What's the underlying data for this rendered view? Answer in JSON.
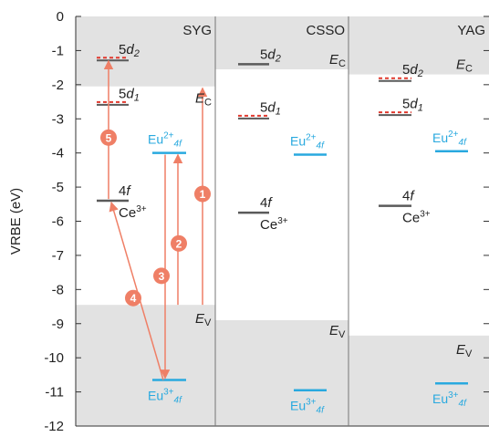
{
  "chart_data": {
    "type": "energy-level-diagram",
    "ylabel": "VRBE (eV)",
    "ylim": [
      -12,
      0
    ],
    "yticks": [
      "0",
      "-1",
      "-2",
      "-3",
      "-4",
      "-5",
      "-6",
      "-7",
      "-8",
      "-9",
      "-10",
      "-11",
      "-12"
    ],
    "grid": false,
    "colors": {
      "ce": "#5a5a5a",
      "eu": "#29a9df",
      "dashed": "#e03a2f",
      "arrow": "#ef7f66",
      "band": "#e2e2e2"
    },
    "panels": [
      {
        "name": "SYG",
        "Ec": -2.05,
        "Ev": -8.45,
        "Ec_label": "E",
        "Ec_sub": "C",
        "Ev_label": "E",
        "Ev_sub": "V",
        "ce_levels": [
          {
            "main": "5d",
            "sub": "2",
            "value": -1.25,
            "dashed": true
          },
          {
            "main": "5d",
            "sub": "1",
            "value": -2.55,
            "dashed": true
          },
          {
            "main": "4f",
            "sub": "",
            "value": -5.4,
            "dashed": false,
            "ion": "Ce",
            "charge": "3+"
          }
        ],
        "eu_levels": [
          {
            "ion": "Eu",
            "charge": "2+",
            "sub": "4f",
            "value": -4.0
          },
          {
            "ion": "Eu",
            "charge": "3+",
            "sub": "4f",
            "value": -10.65
          }
        ],
        "transitions": [
          {
            "label": "1",
            "from": -8.45,
            "to": -2.1
          },
          {
            "label": "2",
            "from": -8.45,
            "to": -4.05
          },
          {
            "label": "3",
            "from": -4.05,
            "to": -10.6
          },
          {
            "label": "4",
            "from": -10.65,
            "to": -5.45
          },
          {
            "label": "5",
            "from": -5.35,
            "to": -1.3
          }
        ]
      },
      {
        "name": "CSSO",
        "Ec": -1.55,
        "Ev": -8.9,
        "Ec_label": "E",
        "Ec_sub": "C",
        "Ev_label": "E",
        "Ev_sub": "V",
        "ce_levels": [
          {
            "main": "5d",
            "sub": "2",
            "value": -1.4,
            "dashed": false
          },
          {
            "main": "5d",
            "sub": "1",
            "value": -2.95,
            "dashed": true
          },
          {
            "main": "4f",
            "sub": "",
            "value": -5.75,
            "dashed": false,
            "ion": "Ce",
            "charge": "3+"
          }
        ],
        "eu_levels": [
          {
            "ion": "Eu",
            "charge": "2+",
            "sub": "4f",
            "value": -4.05
          },
          {
            "ion": "Eu",
            "charge": "3+",
            "sub": "4f",
            "value": -10.95
          }
        ],
        "transitions": []
      },
      {
        "name": "YAG",
        "Ec": -1.7,
        "Ev": -9.35,
        "Ec_label": "E",
        "Ec_sub": "C",
        "Ev_label": "E",
        "Ev_sub": "V",
        "ce_levels": [
          {
            "main": "5d",
            "sub": "2",
            "value": -1.85,
            "dashed": true
          },
          {
            "main": "5d",
            "sub": "1",
            "value": -2.85,
            "dashed": true
          },
          {
            "main": "4f",
            "sub": "",
            "value": -5.55,
            "dashed": false,
            "ion": "Ce",
            "charge": "3+"
          }
        ],
        "eu_levels": [
          {
            "ion": "Eu",
            "charge": "2+",
            "sub": "4f",
            "value": -3.95
          },
          {
            "ion": "Eu",
            "charge": "3+",
            "sub": "4f",
            "value": -10.75
          }
        ],
        "transitions": []
      }
    ]
  }
}
